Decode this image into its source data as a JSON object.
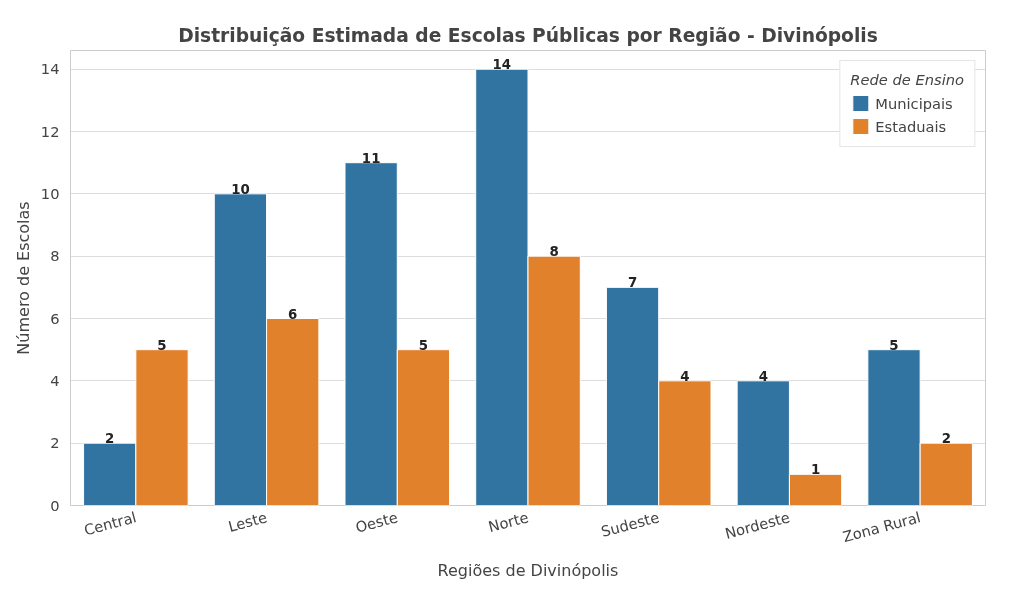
{
  "chart_data": {
    "type": "bar",
    "title": "Distribuição Estimada de Escolas Públicas por Região - Divinópolis",
    "xlabel": "Regiões de Divinópolis",
    "ylabel": "Número de Escolas",
    "legend_title": "Rede de Ensino",
    "categories": [
      "Central",
      "Leste",
      "Oeste",
      "Norte",
      "Sudeste",
      "Nordeste",
      "Zona Rural"
    ],
    "series": [
      {
        "name": "Municipais",
        "color": "#3274a1",
        "values": [
          2,
          10,
          11,
          14,
          7,
          4,
          5
        ]
      },
      {
        "name": "Estaduais",
        "color": "#e1812c",
        "values": [
          5,
          6,
          5,
          8,
          4,
          1,
          2
        ]
      }
    ],
    "ylim": [
      0,
      14.6
    ],
    "yticks": [
      0,
      2,
      4,
      6,
      8,
      10,
      12,
      14
    ],
    "grid": "y",
    "legend": "top right",
    "data_labels": true
  }
}
